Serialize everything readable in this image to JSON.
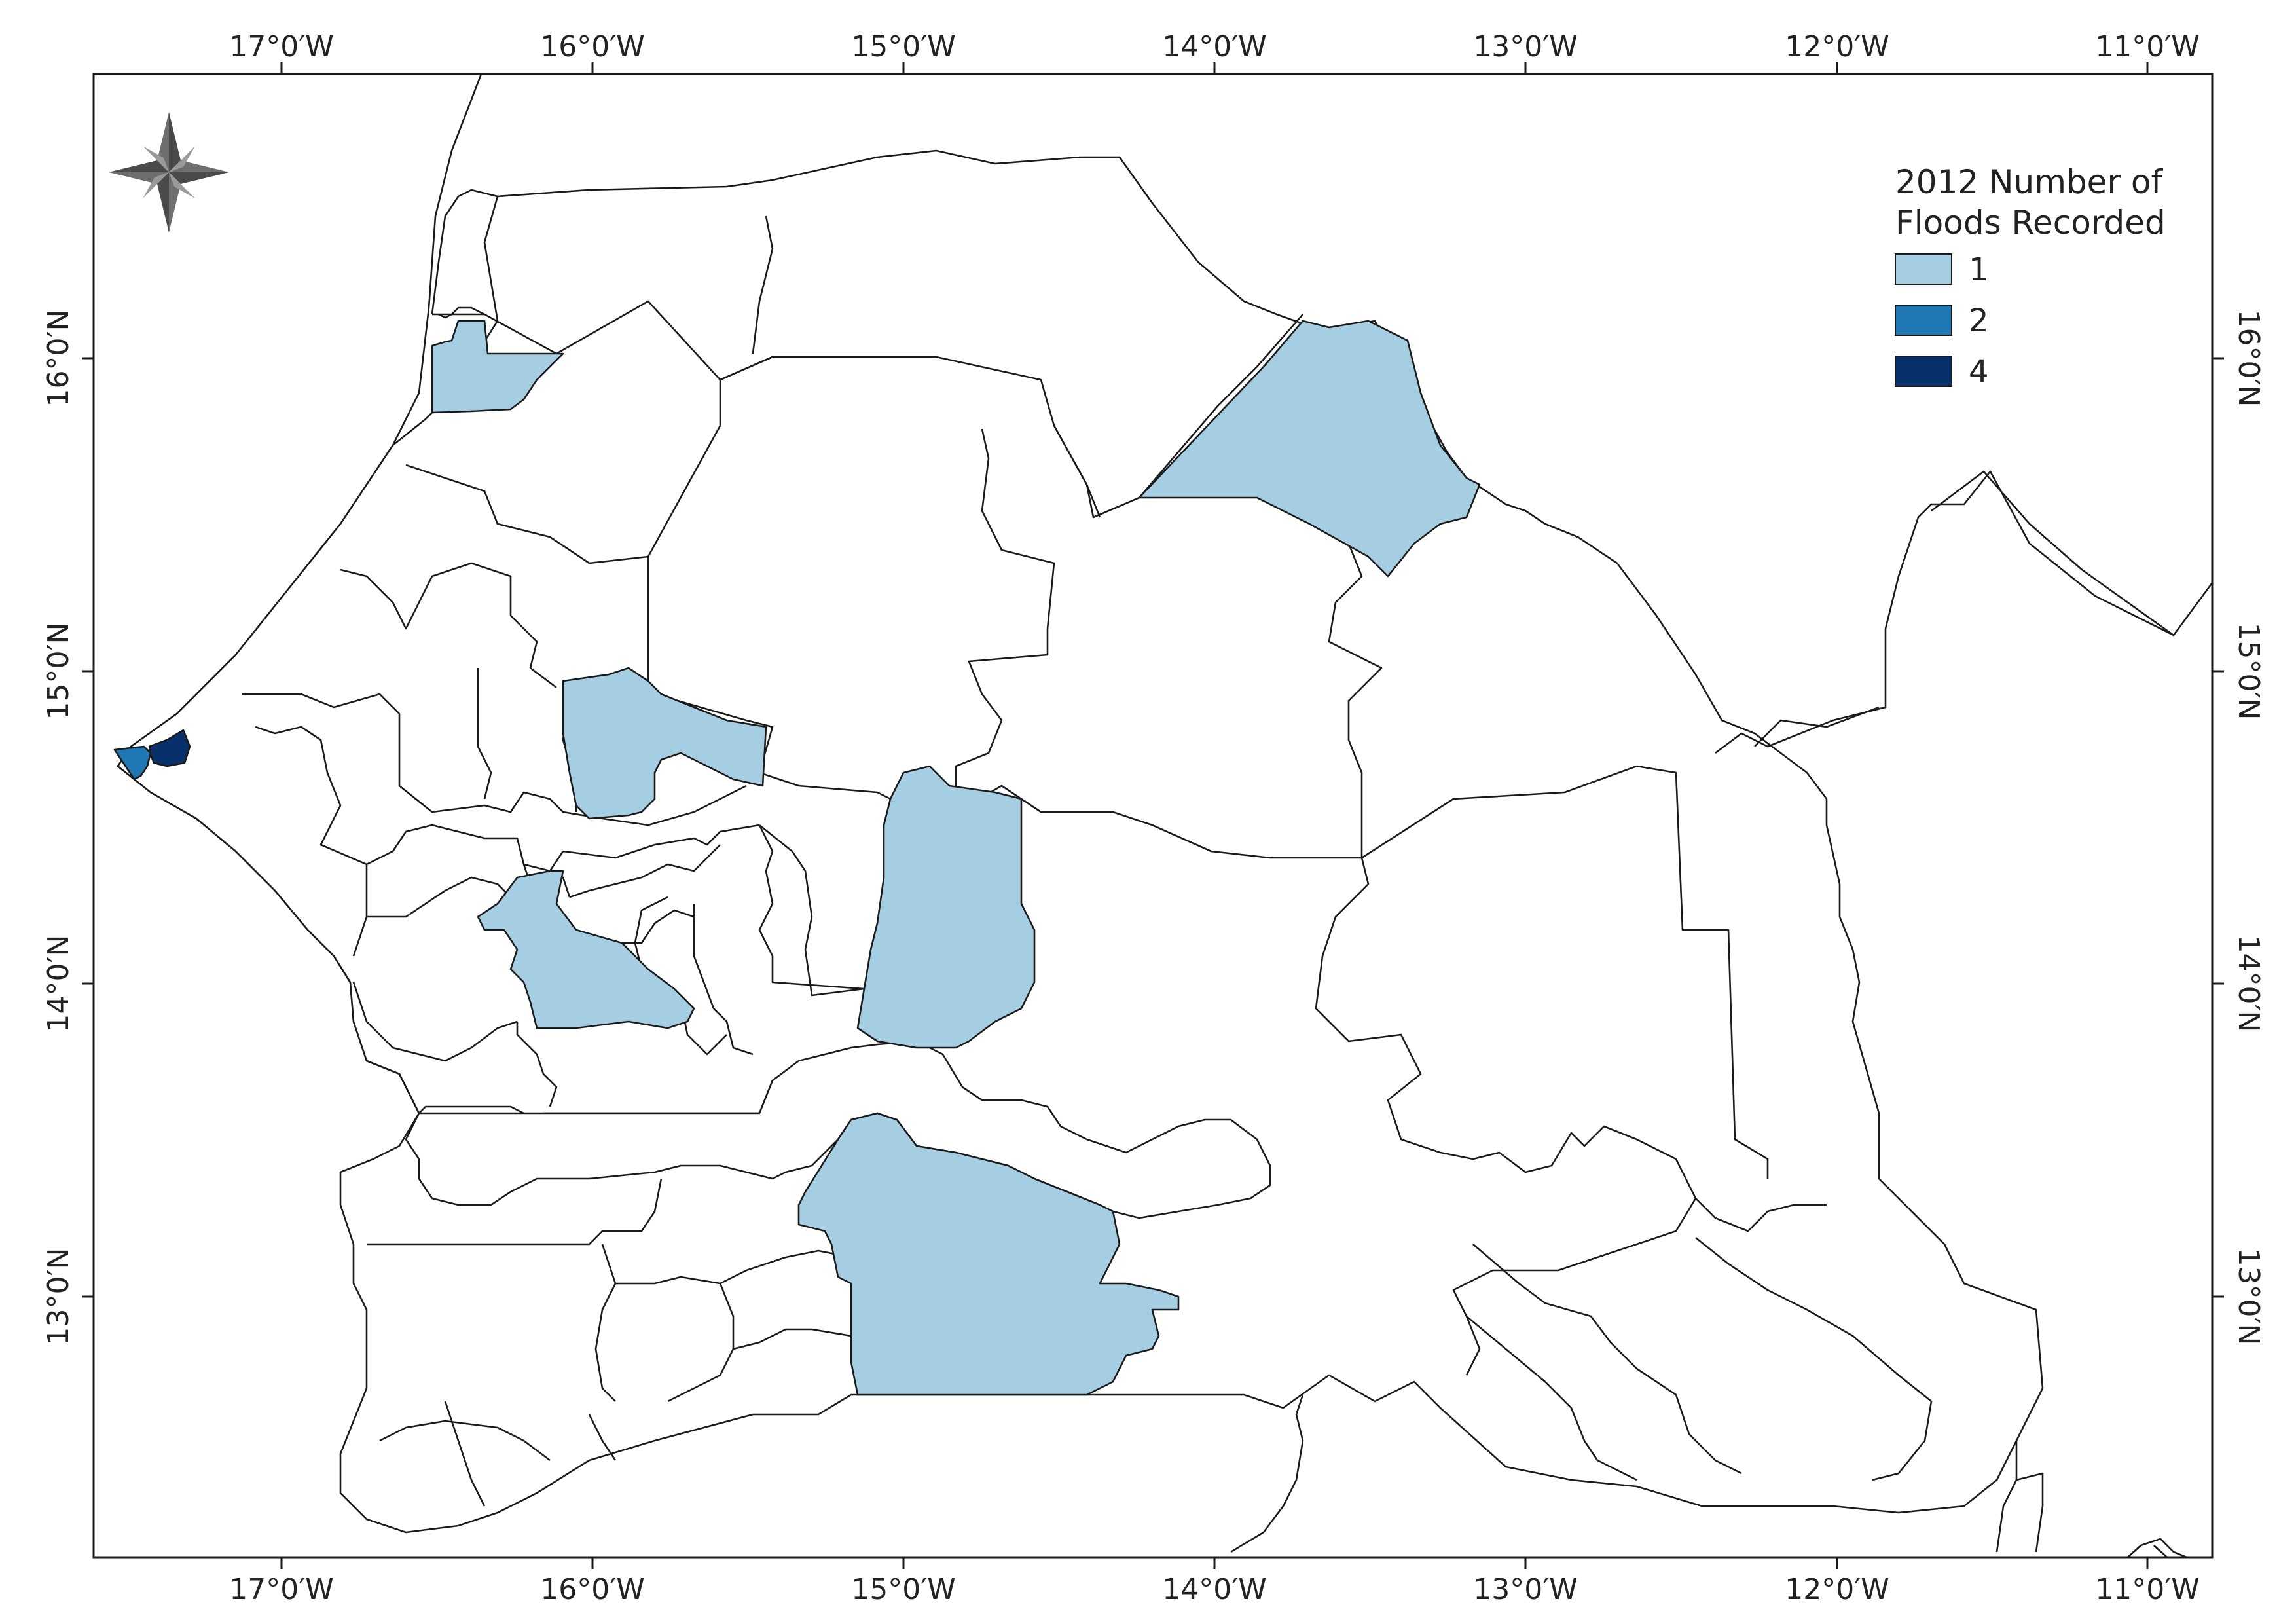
{
  "map": {
    "legend": {
      "title_line1": "2012 Number of",
      "title_line2": "Floods Recorded",
      "items": [
        {
          "label": "1",
          "color": "#a6cee3"
        },
        {
          "label": "2",
          "color": "#1f78b4"
        },
        {
          "label": "4",
          "color": "#08306b"
        }
      ]
    },
    "longitude_ticks": [
      "17°0′W",
      "16°0′W",
      "15°0′W",
      "14°0′W",
      "13°0′W",
      "12°0′W",
      "11°0′W"
    ],
    "latitude_ticks": [
      "16°0′N",
      "15°0′N",
      "14°0′N",
      "13°0′N"
    ],
    "colors": {
      "default_fill": "#ffffff",
      "border": "#1a1a1a",
      "frame": "#1a1a1a"
    },
    "north_arrow": "compass-rose-icon"
  }
}
